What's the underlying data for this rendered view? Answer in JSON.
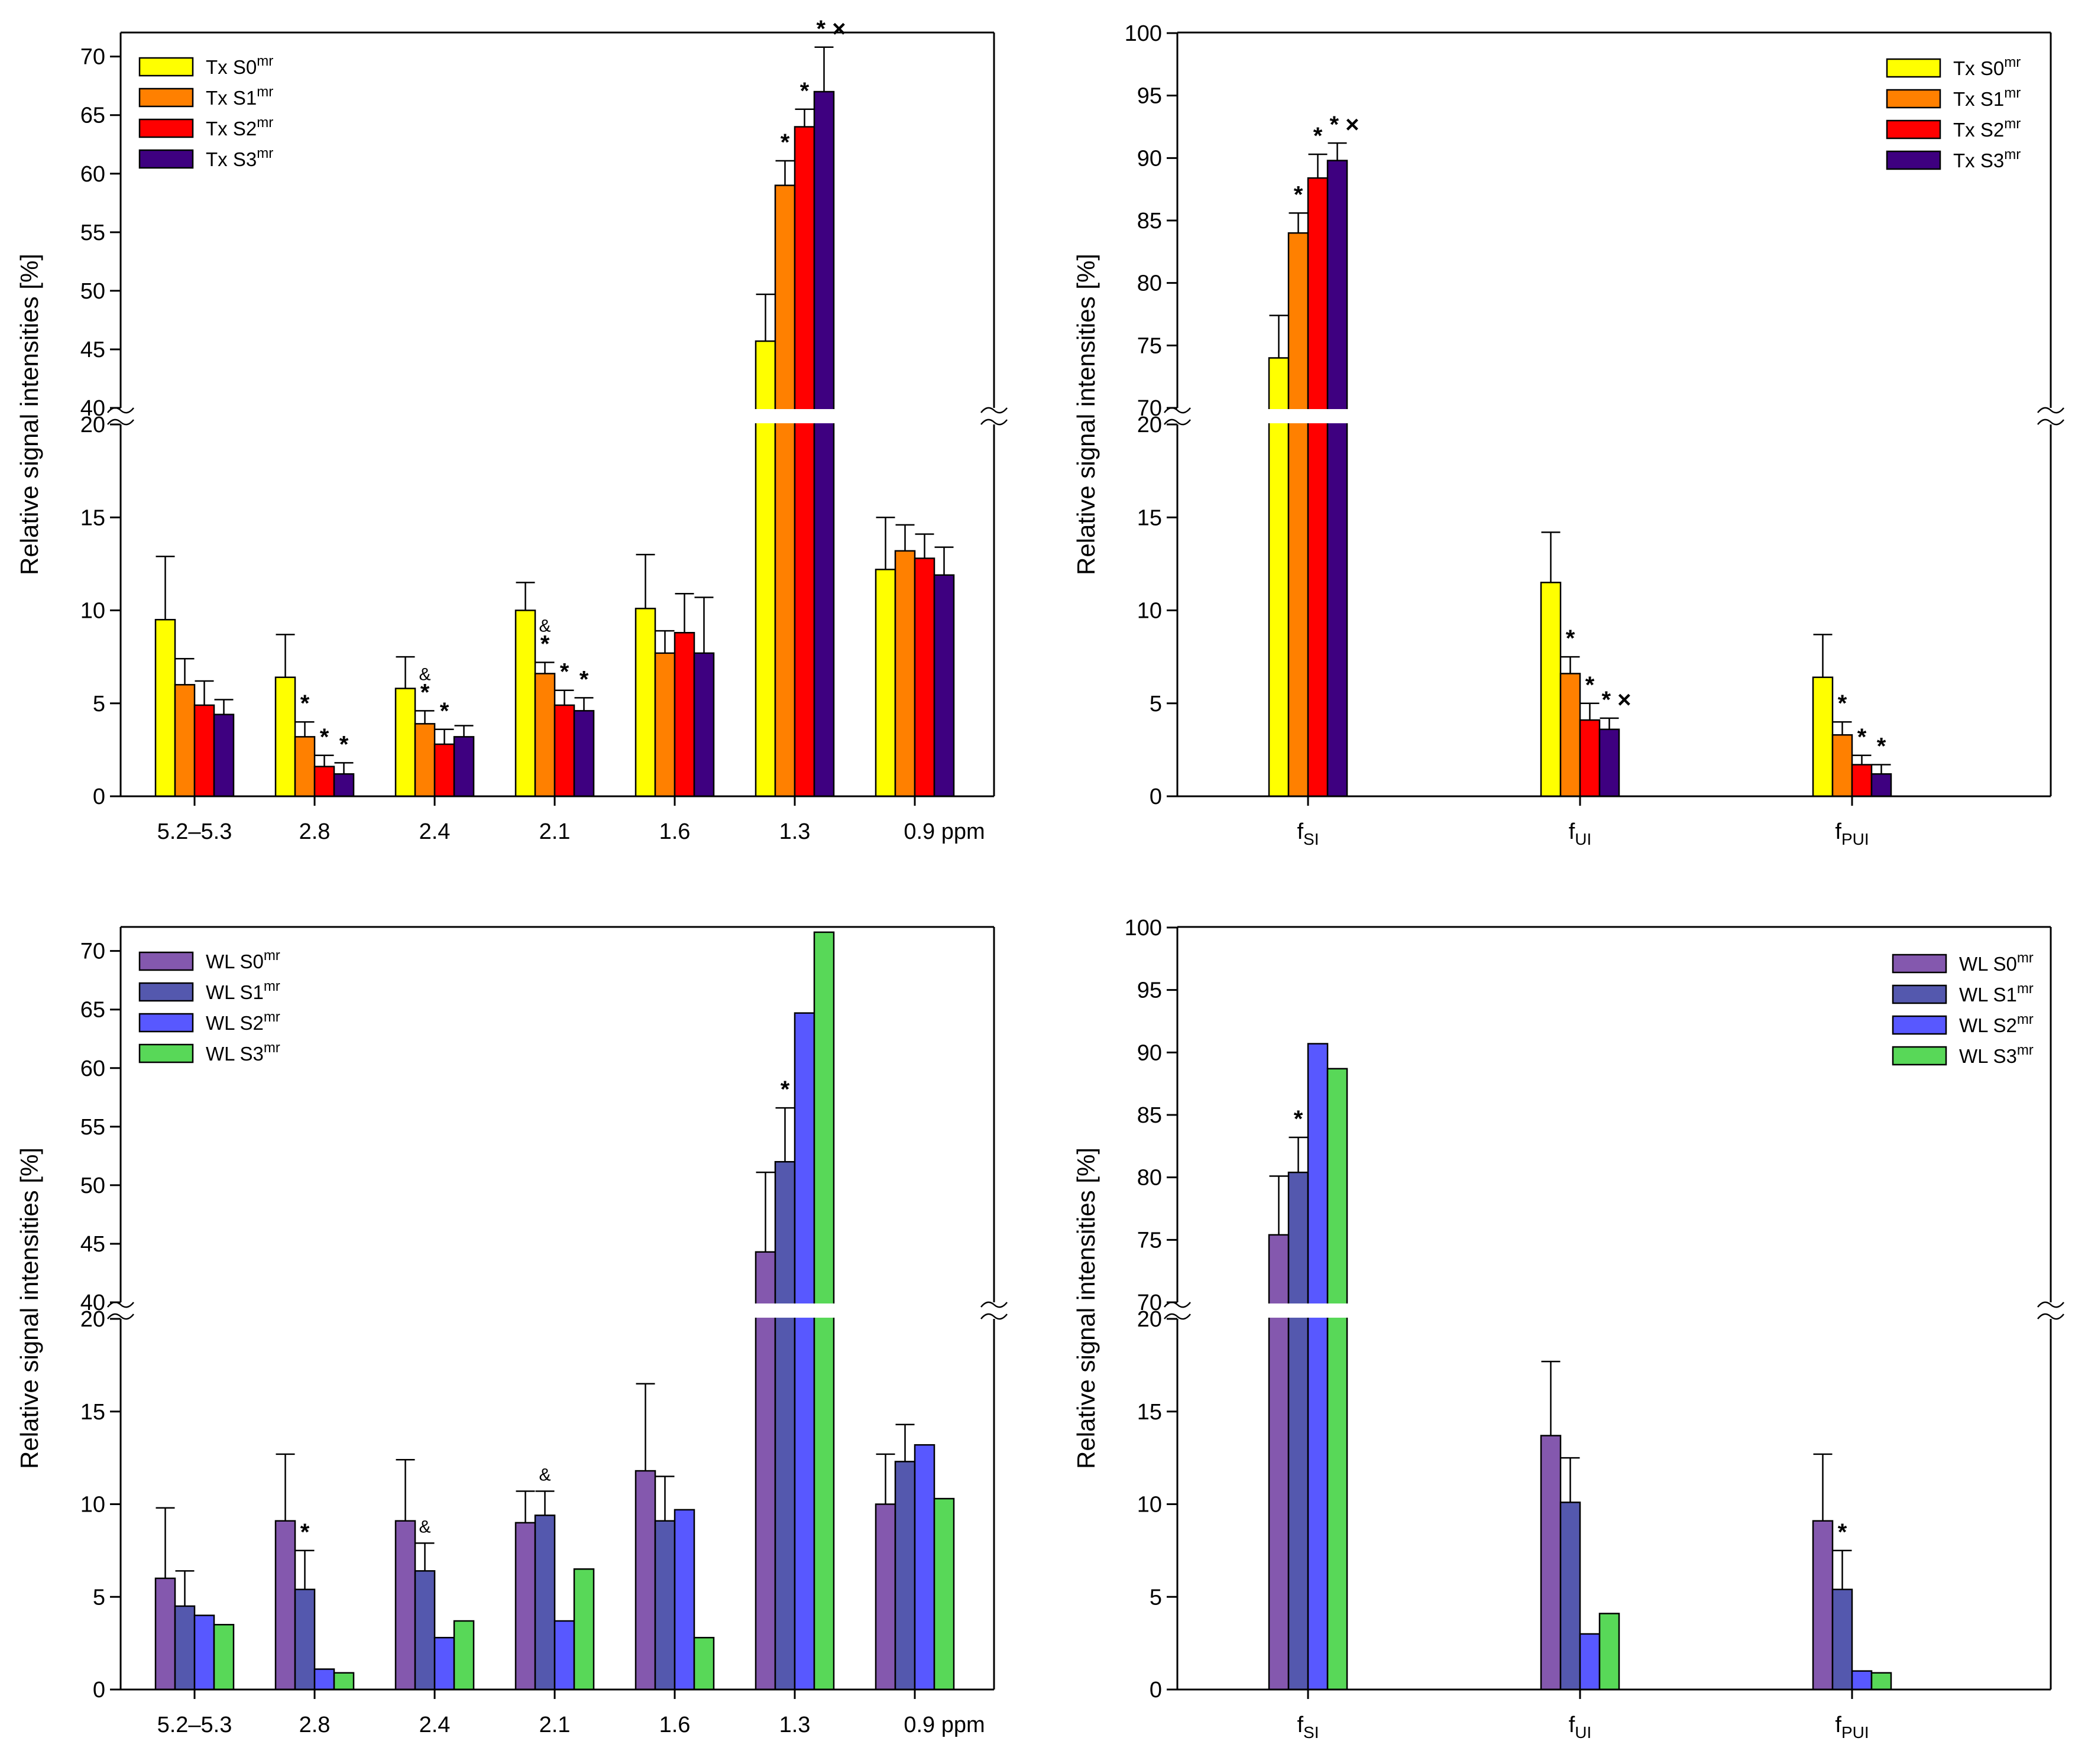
{
  "colors": {
    "tx": [
      "#FFFF00",
      "#FF8000",
      "#FF0000",
      "#3E0080"
    ],
    "wl": [
      "#8458AE",
      "#5458AE",
      "#5858FF",
      "#58D858"
    ]
  },
  "chart_data": [
    {
      "type": "bar",
      "panel": "top-left",
      "ylabel": "Relative signal intensities [%]",
      "categories": [
        "5.2–5.3",
        "2.8",
        "2.4",
        "2.1",
        "1.6",
        "1.3",
        "0.9 ppm"
      ],
      "axis_break": {
        "lower_range": [
          0,
          20
        ],
        "upper_range": [
          40,
          72
        ]
      },
      "lower_ticks": [
        0,
        5,
        10,
        15,
        20
      ],
      "upper_ticks": [
        40,
        45,
        50,
        55,
        60,
        65,
        70
      ],
      "legend_position": "top-left",
      "series": [
        {
          "name": "Tx S0",
          "sup": "mr",
          "values": [
            9.5,
            6.4,
            5.8,
            10.0,
            10.1,
            45.7,
            12.2
          ],
          "errors": [
            3.4,
            2.3,
            1.7,
            1.5,
            2.9,
            4.0,
            2.8
          ]
        },
        {
          "name": "Tx S1",
          "sup": "mr",
          "values": [
            6.0,
            3.2,
            3.9,
            6.6,
            7.7,
            59.0,
            13.2
          ],
          "errors": [
            1.4,
            0.8,
            0.7,
            0.6,
            1.2,
            2.1,
            1.4
          ]
        },
        {
          "name": "Tx S2",
          "sup": "mr",
          "values": [
            4.9,
            1.6,
            2.8,
            4.9,
            8.8,
            64.0,
            12.8
          ],
          "errors": [
            1.3,
            0.6,
            0.8,
            0.8,
            2.1,
            1.5,
            1.3
          ]
        },
        {
          "name": "Tx S3",
          "sup": "mr",
          "values": [
            4.4,
            1.2,
            3.2,
            4.6,
            7.7,
            67.0,
            11.9
          ],
          "errors": [
            0.8,
            0.6,
            0.6,
            0.7,
            3.0,
            3.8,
            1.5
          ]
        }
      ],
      "annotations": [
        {
          "category": 1,
          "series": 1,
          "text": "*"
        },
        {
          "category": 1,
          "series": 2,
          "text": "*"
        },
        {
          "category": 1,
          "series": 3,
          "text": "*"
        },
        {
          "category": 2,
          "series": 1,
          "text": "*"
        },
        {
          "category": 2,
          "series": 1,
          "text": "&",
          "level": 2
        },
        {
          "category": 2,
          "series": 2,
          "text": "*"
        },
        {
          "category": 3,
          "series": 1,
          "text": "*"
        },
        {
          "category": 3,
          "series": 1,
          "text": "&",
          "level": 2
        },
        {
          "category": 3,
          "series": 2,
          "text": "*"
        },
        {
          "category": 3,
          "series": 3,
          "text": "*"
        },
        {
          "category": 5,
          "series": 1,
          "text": "*"
        },
        {
          "category": 5,
          "series": 2,
          "text": "*"
        },
        {
          "category": 5,
          "series": 3,
          "text": "* ×"
        }
      ]
    },
    {
      "type": "bar",
      "panel": "top-right",
      "ylabel": "Relative signal intensities [%]",
      "categories": [
        "f",
        "f",
        "f"
      ],
      "category_subscripts": [
        "SI",
        "UI",
        "PUI"
      ],
      "axis_break": {
        "lower_range": [
          0,
          20
        ],
        "upper_range": [
          70,
          100
        ]
      },
      "lower_ticks": [
        0,
        5,
        10,
        15,
        20
      ],
      "upper_ticks": [
        70,
        75,
        80,
        85,
        90,
        95,
        100
      ],
      "legend_position": "top-right",
      "series": [
        {
          "name": "Tx S0",
          "sup": "mr",
          "values": [
            74.0,
            11.5,
            6.4
          ],
          "errors": [
            3.4,
            2.7,
            2.3
          ]
        },
        {
          "name": "Tx S1",
          "sup": "mr",
          "values": [
            84.0,
            6.6,
            3.3
          ],
          "errors": [
            1.6,
            0.9,
            0.7
          ]
        },
        {
          "name": "Tx S2",
          "sup": "mr",
          "values": [
            88.4,
            4.1,
            1.7
          ],
          "errors": [
            1.9,
            0.9,
            0.5
          ]
        },
        {
          "name": "Tx S3",
          "sup": "mr",
          "values": [
            89.8,
            3.6,
            1.2
          ],
          "errors": [
            1.4,
            0.6,
            0.5
          ]
        }
      ],
      "annotations": [
        {
          "category": 0,
          "series": 1,
          "text": "*"
        },
        {
          "category": 0,
          "series": 2,
          "text": "*"
        },
        {
          "category": 0,
          "series": 3,
          "text": "* ×"
        },
        {
          "category": 1,
          "series": 1,
          "text": "*"
        },
        {
          "category": 1,
          "series": 2,
          "text": "*"
        },
        {
          "category": 1,
          "series": 3,
          "text": "* ×"
        },
        {
          "category": 2,
          "series": 1,
          "text": "*"
        },
        {
          "category": 2,
          "series": 2,
          "text": "*"
        },
        {
          "category": 2,
          "series": 3,
          "text": "*"
        }
      ]
    },
    {
      "type": "bar",
      "panel": "bottom-left",
      "ylabel": "Relative signal intensities [%]",
      "categories": [
        "5.2–5.3",
        "2.8",
        "2.4",
        "2.1",
        "1.6",
        "1.3",
        "0.9 ppm"
      ],
      "axis_break": {
        "lower_range": [
          0,
          20
        ],
        "upper_range": [
          40,
          72
        ]
      },
      "lower_ticks": [
        0,
        5,
        10,
        15,
        20
      ],
      "upper_ticks": [
        40,
        45,
        50,
        55,
        60,
        65,
        70
      ],
      "legend_position": "top-left",
      "series": [
        {
          "name": "WL S0",
          "sup": "mr",
          "values": [
            6.0,
            9.1,
            9.1,
            9.0,
            11.8,
            44.3,
            10.0
          ],
          "errors": [
            3.8,
            3.6,
            3.3,
            1.7,
            4.7,
            6.8,
            2.7
          ]
        },
        {
          "name": "WL S1",
          "sup": "mr",
          "values": [
            4.5,
            5.4,
            6.4,
            9.4,
            9.1,
            52.0,
            12.3
          ],
          "errors": [
            1.9,
            2.1,
            1.5,
            1.3,
            2.4,
            4.6,
            2.0
          ]
        },
        {
          "name": "WL S2",
          "sup": "mr",
          "values": [
            4.0,
            1.1,
            2.8,
            3.7,
            9.7,
            64.7,
            13.2
          ],
          "errors": [
            null,
            null,
            null,
            null,
            null,
            null,
            null
          ]
        },
        {
          "name": "WL S3",
          "sup": "mr",
          "values": [
            3.5,
            0.9,
            3.7,
            6.5,
            2.8,
            71.6,
            10.3
          ],
          "errors": [
            null,
            null,
            null,
            null,
            null,
            null,
            null
          ]
        }
      ],
      "annotations": [
        {
          "category": 1,
          "series": 1,
          "text": "*"
        },
        {
          "category": 2,
          "series": 1,
          "text": "&"
        },
        {
          "category": 3,
          "series": 1,
          "text": "&"
        },
        {
          "category": 5,
          "series": 1,
          "text": "*"
        }
      ]
    },
    {
      "type": "bar",
      "panel": "bottom-right",
      "ylabel": "Relative signal intensities [%]",
      "categories": [
        "f",
        "f",
        "f"
      ],
      "category_subscripts": [
        "SI",
        "UI",
        "PUI"
      ],
      "axis_break": {
        "lower_range": [
          0,
          20
        ],
        "upper_range": [
          70,
          100
        ]
      },
      "lower_ticks": [
        0,
        5,
        10,
        15,
        20
      ],
      "upper_ticks": [
        70,
        75,
        80,
        85,
        90,
        95,
        100
      ],
      "legend_position": "top-right",
      "series": [
        {
          "name": "WL S0",
          "sup": "mr",
          "values": [
            75.4,
            13.7,
            9.1
          ],
          "errors": [
            4.7,
            4.0,
            3.6
          ]
        },
        {
          "name": "WL S1",
          "sup": "mr",
          "values": [
            80.4,
            10.1,
            5.4
          ],
          "errors": [
            2.8,
            2.4,
            2.1
          ]
        },
        {
          "name": "WL S2",
          "sup": "mr",
          "values": [
            90.7,
            3.0,
            1.0
          ],
          "errors": [
            null,
            null,
            null
          ]
        },
        {
          "name": "WL S3",
          "sup": "mr",
          "values": [
            88.7,
            4.1,
            0.9
          ],
          "errors": [
            null,
            null,
            null
          ]
        }
      ],
      "annotations": [
        {
          "category": 0,
          "series": 1,
          "text": "*"
        },
        {
          "category": 2,
          "series": 1,
          "text": "*"
        }
      ]
    }
  ]
}
